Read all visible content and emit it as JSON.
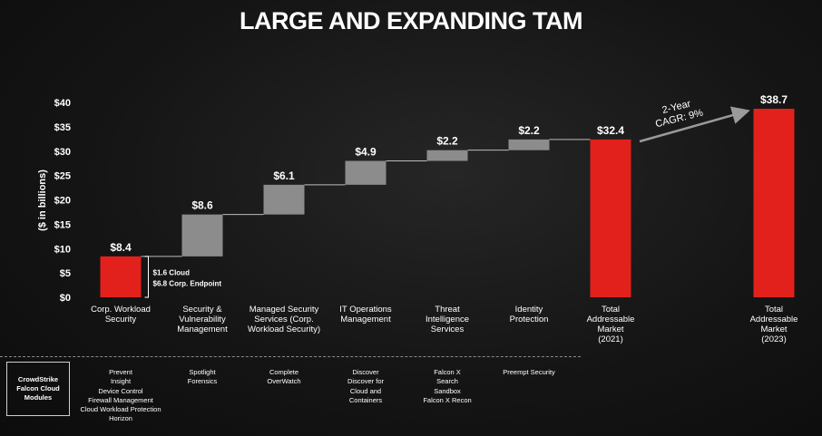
{
  "title": "LARGE AND EXPANDING TAM",
  "chart_data": {
    "type": "waterfall",
    "ylabel": "($ in billions)",
    "ylim": [
      0,
      40
    ],
    "yticks": [
      "$0",
      "$5",
      "$10",
      "$15",
      "$20",
      "$25",
      "$30",
      "$35",
      "$40"
    ],
    "ytick_values": [
      0,
      5,
      10,
      15,
      20,
      25,
      30,
      35,
      40
    ],
    "bars": [
      {
        "category": "Corp. Workload Security",
        "start": 0,
        "end": 8.4,
        "label": "$8.4",
        "kind": "total"
      },
      {
        "category": "Security & Vulnerability Management",
        "start": 8.4,
        "end": 17.0,
        "label": "$8.6",
        "kind": "increment"
      },
      {
        "category": "Managed Security Services (Corp. Workload Security)",
        "start": 17.0,
        "end": 23.1,
        "label": "$6.1",
        "kind": "increment"
      },
      {
        "category": "IT Operations Management",
        "start": 23.1,
        "end": 28.0,
        "label": "$4.9",
        "kind": "increment"
      },
      {
        "category": "Threat Intelligence Services",
        "start": 28.0,
        "end": 30.2,
        "label": "$2.2",
        "kind": "increment"
      },
      {
        "category": "Identity Protection",
        "start": 30.2,
        "end": 32.4,
        "label": "$2.2",
        "kind": "increment"
      },
      {
        "category": "Total Addressable Market (2021)",
        "start": 0,
        "end": 32.4,
        "label": "$32.4",
        "kind": "total"
      },
      {
        "category": "Total Addressable Market (2023)",
        "start": 0,
        "end": 38.7,
        "label": "$38.7",
        "kind": "total"
      }
    ],
    "first_bar_note": [
      "$1.6 Cloud",
      "$6.8 Corp. Endpoint"
    ],
    "cagr_annotation": [
      "2-Year",
      "CAGR: 9%"
    ],
    "colors": {
      "total": "#e3211c",
      "increment": "#8c8c8c",
      "connector": "#bdbdbd"
    }
  },
  "category_lines": [
    [
      "Corp. Workload",
      "Security"
    ],
    [
      "Security &",
      "Vulnerability",
      "Management"
    ],
    [
      "Managed Security",
      "Services (Corp.",
      "Workload Security)"
    ],
    [
      "IT Operations",
      "Management"
    ],
    [
      "Threat",
      "Intelligence",
      "Services"
    ],
    [
      "Identity",
      "Protection"
    ],
    [
      "Total",
      "Addressable",
      "Market",
      "(2021)"
    ],
    [
      "Total",
      "Addressable",
      "Market",
      "(2023)"
    ]
  ],
  "modules_label": "CrowdStrike Falcon Cloud Modules",
  "modules": [
    [
      "Prevent",
      "Insight",
      "Device Control",
      "Firewall Management",
      "Cloud Workload Protection",
      "Horizon"
    ],
    [
      "Spotlight",
      "Forensics"
    ],
    [
      "Complete",
      "OverWatch"
    ],
    [
      "Discover",
      "Discover for",
      "Cloud and",
      "Containers"
    ],
    [
      "Falcon X",
      "Search",
      "Sandbox",
      "Falcon X Recon"
    ],
    [
      "Preempt Security"
    ]
  ]
}
